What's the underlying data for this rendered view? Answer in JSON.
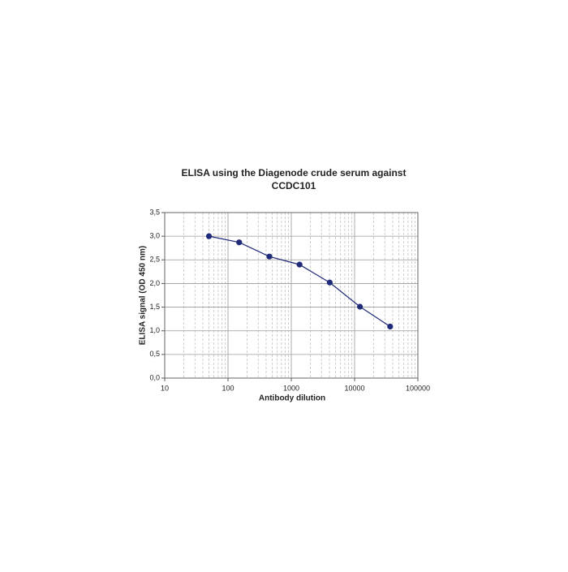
{
  "chart_data": {
    "type": "line",
    "title": [
      "ELISA using the Diagenode crude serum against",
      "CCDC101"
    ],
    "x_label": "Antibody dilution",
    "y_label": "ELISA signal (OD 450 nm)",
    "x": [
      50,
      150,
      450,
      1350,
      4050,
      12150,
      36450
    ],
    "series": [
      {
        "name": "CCDC101",
        "color": "#1f2a78",
        "values": [
          3.0,
          2.87,
          2.57,
          2.4,
          2.02,
          1.51,
          1.09
        ]
      }
    ],
    "x_log": true,
    "xlim": [
      10,
      100000
    ],
    "xticks": [
      10,
      100,
      1000,
      10000,
      100000
    ],
    "ylim": [
      0,
      3.5
    ],
    "yticks": [
      {
        "value": 0,
        "label": "0,0"
      },
      {
        "value": 0.5,
        "label": "0,5"
      },
      {
        "value": 1,
        "label": "1,0"
      },
      {
        "value": 1.5,
        "label": "1,5"
      },
      {
        "value": 2,
        "label": "2,0"
      },
      {
        "value": 2.5,
        "label": "2,5"
      },
      {
        "value": 3,
        "label": "3,0"
      },
      {
        "value": 3.5,
        "label": "3,5"
      }
    ],
    "grid": true
  }
}
